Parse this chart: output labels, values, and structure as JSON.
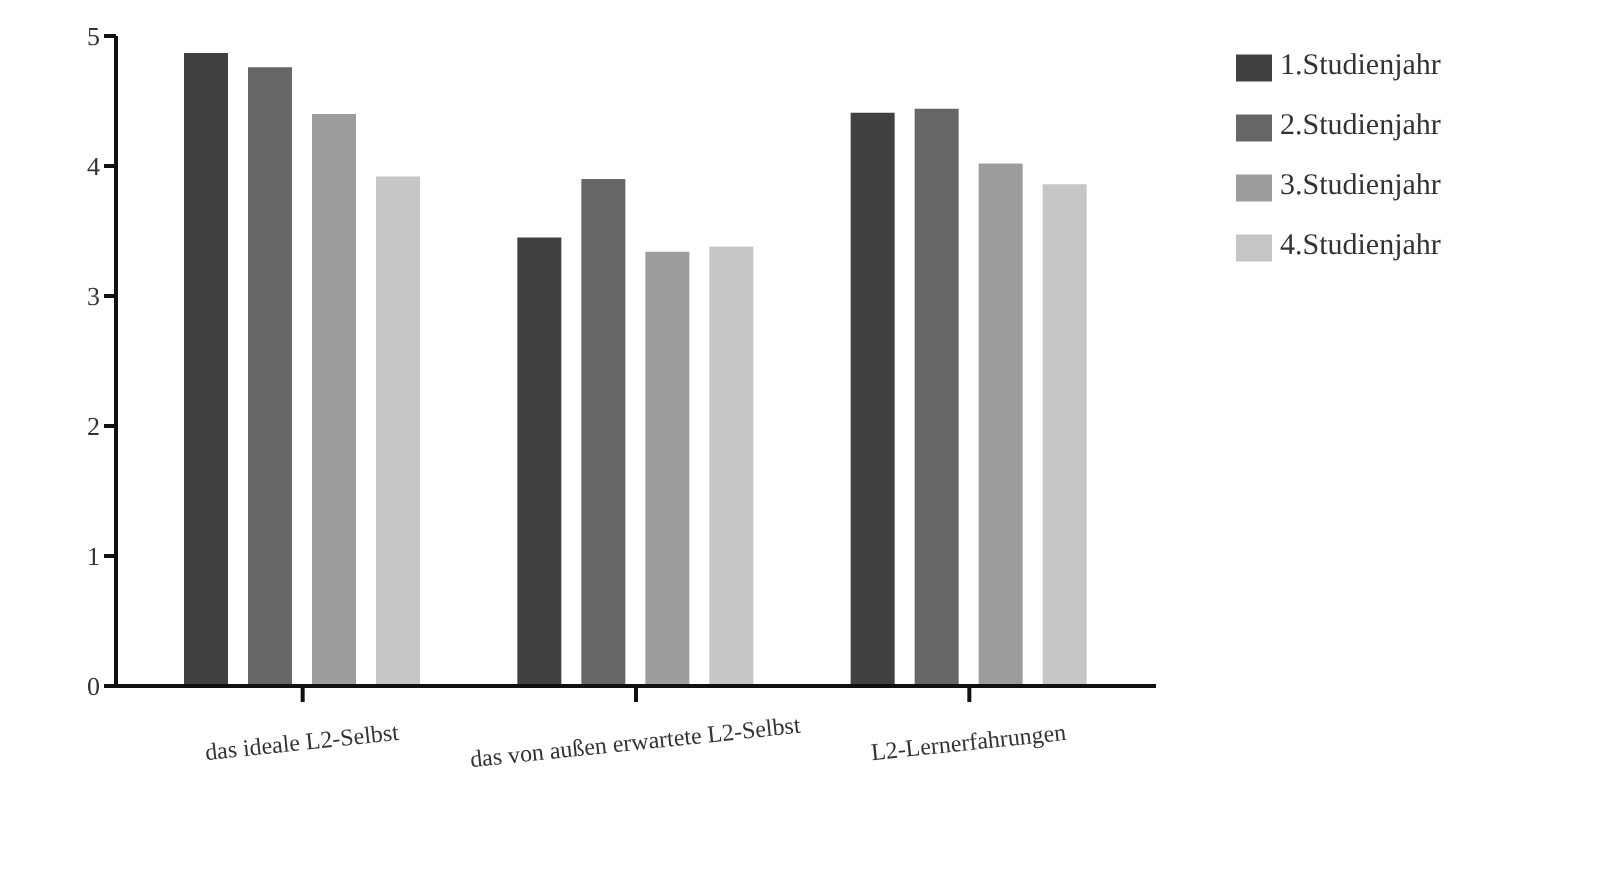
{
  "chart_data": {
    "type": "bar",
    "categories": [
      "das ideale L2-Selbst",
      "das von außen erwartete L2-Selbst",
      "L2-Lernerfahrungen"
    ],
    "series": [
      {
        "name": "1.Studienjahr",
        "color": "#414141",
        "values": [
          4.87,
          3.45,
          4.41
        ]
      },
      {
        "name": "2.Studienjahr",
        "color": "#666666",
        "values": [
          4.76,
          3.9,
          4.44
        ]
      },
      {
        "name": "3.Studienjahr",
        "color": "#9c9c9c",
        "values": [
          4.4,
          3.34,
          4.02
        ]
      },
      {
        "name": "4.Studienjahr",
        "color": "#c6c6c6",
        "values": [
          3.92,
          3.38,
          3.86
        ]
      }
    ],
    "ylim": [
      0,
      5
    ],
    "yticks": [
      0,
      1,
      2,
      3,
      4,
      5
    ],
    "grid": false,
    "legend": "right"
  }
}
